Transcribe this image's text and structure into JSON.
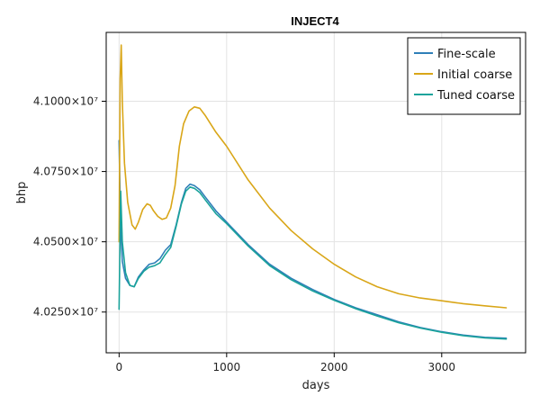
{
  "chart_data": {
    "type": "line",
    "title": "INJECT4",
    "xlabel": "days",
    "ylabel": "bhp",
    "xlim": [
      -120,
      3780
    ],
    "ylim": [
      40105000,
      41245000
    ],
    "xticks": [
      {
        "value": 0,
        "label": "0"
      },
      {
        "value": 1000,
        "label": "1000"
      },
      {
        "value": 2000,
        "label": "2000"
      },
      {
        "value": 3000,
        "label": "3000"
      }
    ],
    "yticks": [
      {
        "value": 40250000,
        "label": "4.0250×10⁷"
      },
      {
        "value": 40500000,
        "label": "4.0500×10⁷"
      },
      {
        "value": 40750000,
        "label": "4.0750×10⁷"
      },
      {
        "value": 41000000,
        "label": "4.1000×10⁷"
      }
    ],
    "grid": true,
    "legend_position": "top-right",
    "series": [
      {
        "name": "Fine-scale",
        "color": "#2f7fb8",
        "x": [
          0,
          15,
          30,
          60,
          100,
          140,
          180,
          230,
          280,
          330,
          380,
          430,
          480,
          530,
          580,
          620,
          660,
          700,
          750,
          800,
          900,
          1000,
          1200,
          1400,
          1600,
          1800,
          2000,
          2200,
          2400,
          2600,
          2800,
          3000,
          3200,
          3400,
          3600
        ],
        "y": [
          40860000,
          40550000,
          40430000,
          40370000,
          40345000,
          40340000,
          40375000,
          40400000,
          40420000,
          40425000,
          40440000,
          40470000,
          40490000,
          40560000,
          40640000,
          40690000,
          40705000,
          40700000,
          40685000,
          40660000,
          40610000,
          40570000,
          40490000,
          40420000,
          40370000,
          40330000,
          40295000,
          40265000,
          40240000,
          40215000,
          40195000,
          40180000,
          40168000,
          40160000,
          40157000
        ]
      },
      {
        "name": "Initial coarse",
        "color": "#d9a618",
        "x": [
          0,
          10,
          20,
          30,
          50,
          80,
          120,
          150,
          180,
          220,
          260,
          290,
          320,
          360,
          400,
          440,
          480,
          520,
          560,
          600,
          650,
          700,
          750,
          800,
          900,
          1000,
          1200,
          1400,
          1600,
          1800,
          2000,
          2200,
          2400,
          2600,
          2800,
          3000,
          3200,
          3400,
          3600
        ],
        "y": [
          40500000,
          41080000,
          41200000,
          41000000,
          40780000,
          40640000,
          40560000,
          40545000,
          40570000,
          40615000,
          40635000,
          40630000,
          40610000,
          40590000,
          40580000,
          40585000,
          40620000,
          40700000,
          40840000,
          40920000,
          40965000,
          40980000,
          40975000,
          40950000,
          40890000,
          40840000,
          40720000,
          40620000,
          40540000,
          40475000,
          40420000,
          40375000,
          40340000,
          40315000,
          40300000,
          40290000,
          40280000,
          40272000,
          40265000
        ]
      },
      {
        "name": "Tuned coarse",
        "color": "#1aa39b",
        "x": [
          0,
          15,
          30,
          60,
          100,
          140,
          180,
          230,
          280,
          330,
          380,
          430,
          480,
          530,
          580,
          620,
          660,
          700,
          750,
          800,
          900,
          1000,
          1200,
          1400,
          1600,
          1800,
          2000,
          2200,
          2400,
          2600,
          2800,
          3000,
          3200,
          3400,
          3600
        ],
        "y": [
          40260000,
          40680000,
          40500000,
          40390000,
          40345000,
          40340000,
          40370000,
          40395000,
          40410000,
          40415000,
          40425000,
          40455000,
          40480000,
          40555000,
          40635000,
          40680000,
          40695000,
          40690000,
          40675000,
          40650000,
          40600000,
          40565000,
          40485000,
          40415000,
          40365000,
          40325000,
          40292000,
          40262000,
          40236000,
          40212000,
          40193000,
          40178000,
          40166000,
          40158000,
          40154000
        ]
      }
    ]
  }
}
